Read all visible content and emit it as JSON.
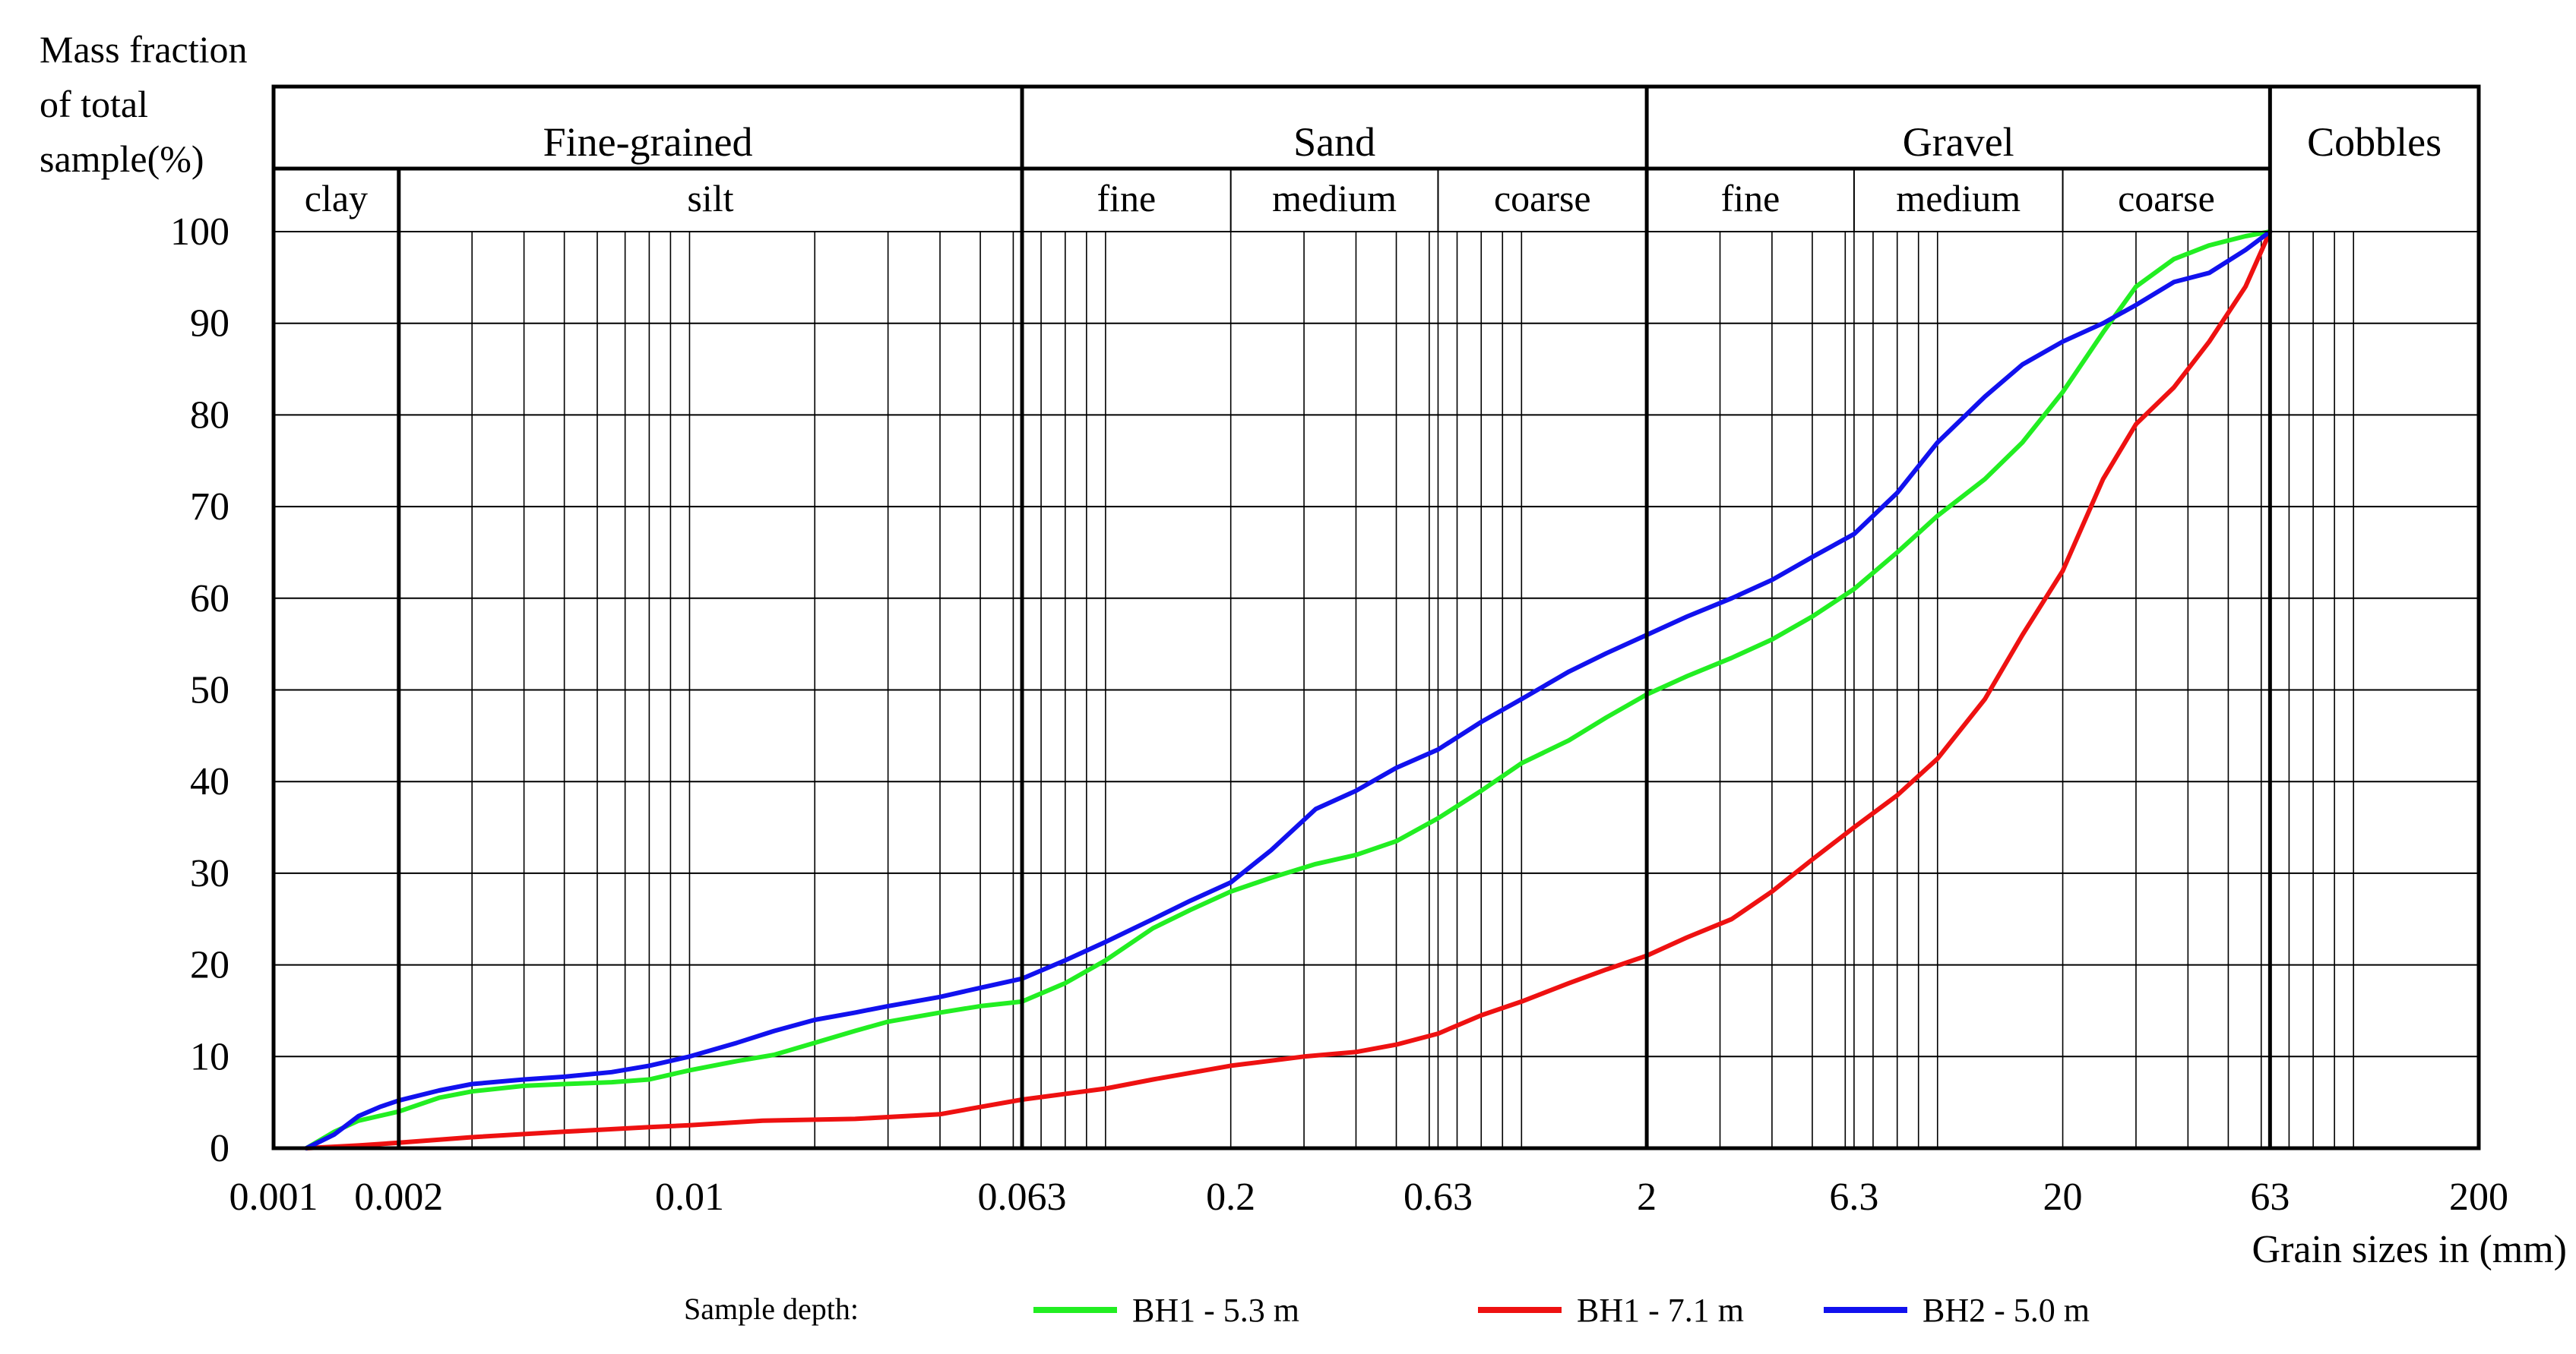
{
  "chart_data": {
    "type": "line",
    "ylabel_lines": [
      "Mass fraction",
      "of total",
      "sample(%)"
    ],
    "xlabel": "Grain sizes in (mm)",
    "xscale": "log",
    "xlim": [
      0.001,
      200
    ],
    "ylim": [
      0,
      100
    ],
    "x_ticks": [
      {
        "value": 0.001,
        "label": "0.001"
      },
      {
        "value": 0.002,
        "label": "0.002"
      },
      {
        "value": 0.01,
        "label": "0.01"
      },
      {
        "value": 0.063,
        "label": "0.063"
      },
      {
        "value": 0.2,
        "label": "0.2"
      },
      {
        "value": 0.63,
        "label": "0.63"
      },
      {
        "value": 2,
        "label": "2"
      },
      {
        "value": 6.3,
        "label": "6.3"
      },
      {
        "value": 20,
        "label": "20"
      },
      {
        "value": 63,
        "label": "63"
      },
      {
        "value": 200,
        "label": "200"
      }
    ],
    "y_ticks": [
      0,
      10,
      20,
      30,
      40,
      50,
      60,
      70,
      80,
      90,
      100
    ],
    "grid": true,
    "classification": {
      "main": [
        {
          "label": "Fine-grained",
          "from": 0.001,
          "to": 0.063
        },
        {
          "label": "Sand",
          "from": 0.063,
          "to": 2
        },
        {
          "label": "Gravel",
          "from": 2,
          "to": 63
        },
        {
          "label": "Cobbles",
          "from": 63,
          "to": 200
        }
      ],
      "sub": [
        {
          "label": "clay",
          "from": 0.001,
          "to": 0.002
        },
        {
          "label": "silt",
          "from": 0.002,
          "to": 0.063
        },
        {
          "label": "fine",
          "from": 0.063,
          "to": 0.2
        },
        {
          "label": "medium",
          "from": 0.2,
          "to": 0.63
        },
        {
          "label": "coarse",
          "from": 0.63,
          "to": 2
        },
        {
          "label": "fine",
          "from": 2,
          "to": 6.3
        },
        {
          "label": "medium",
          "from": 6.3,
          "to": 20
        },
        {
          "label": "coarse",
          "from": 20,
          "to": 63
        }
      ]
    },
    "legend_title": "Sample depth:",
    "legend_position": "bottom",
    "series": [
      {
        "name": "BH1 - 5.3 m",
        "color": "#22ee22",
        "points": [
          [
            0.0012,
            0
          ],
          [
            0.0014,
            1.8
          ],
          [
            0.0016,
            3
          ],
          [
            0.002,
            4
          ],
          [
            0.0025,
            5.5
          ],
          [
            0.003,
            6.2
          ],
          [
            0.004,
            6.8
          ],
          [
            0.005,
            7
          ],
          [
            0.0065,
            7.2
          ],
          [
            0.008,
            7.5
          ],
          [
            0.01,
            8.5
          ],
          [
            0.013,
            9.5
          ],
          [
            0.016,
            10.2
          ],
          [
            0.02,
            11.5
          ],
          [
            0.025,
            12.8
          ],
          [
            0.03,
            13.8
          ],
          [
            0.04,
            14.8
          ],
          [
            0.05,
            15.5
          ],
          [
            0.063,
            16
          ],
          [
            0.08,
            18
          ],
          [
            0.1,
            20.5
          ],
          [
            0.13,
            24
          ],
          [
            0.16,
            26
          ],
          [
            0.2,
            28
          ],
          [
            0.25,
            29.5
          ],
          [
            0.32,
            31
          ],
          [
            0.4,
            32
          ],
          [
            0.5,
            33.5
          ],
          [
            0.63,
            36
          ],
          [
            0.8,
            39
          ],
          [
            1,
            42
          ],
          [
            1.3,
            44.5
          ],
          [
            1.6,
            47
          ],
          [
            2,
            49.5
          ],
          [
            2.5,
            51.5
          ],
          [
            3.2,
            53.5
          ],
          [
            4,
            55.5
          ],
          [
            5,
            58
          ],
          [
            6.3,
            61
          ],
          [
            8,
            65
          ],
          [
            10,
            69
          ],
          [
            13,
            73
          ],
          [
            16,
            77
          ],
          [
            20,
            82.5
          ],
          [
            25,
            89
          ],
          [
            30,
            94
          ],
          [
            37,
            97
          ],
          [
            45,
            98.5
          ],
          [
            55,
            99.5
          ],
          [
            63,
            100
          ]
        ]
      },
      {
        "name": "BH1 - 7.1 m",
        "color": "#ee1111",
        "points": [
          [
            0.0012,
            0
          ],
          [
            0.0016,
            0.3
          ],
          [
            0.002,
            0.6
          ],
          [
            0.003,
            1.2
          ],
          [
            0.005,
            1.8
          ],
          [
            0.008,
            2.3
          ],
          [
            0.01,
            2.5
          ],
          [
            0.015,
            3
          ],
          [
            0.025,
            3.2
          ],
          [
            0.04,
            3.7
          ],
          [
            0.05,
            4.5
          ],
          [
            0.063,
            5.3
          ],
          [
            0.1,
            6.5
          ],
          [
            0.13,
            7.5
          ],
          [
            0.2,
            9
          ],
          [
            0.3,
            10
          ],
          [
            0.4,
            10.5
          ],
          [
            0.5,
            11.3
          ],
          [
            0.63,
            12.5
          ],
          [
            0.8,
            14.5
          ],
          [
            1,
            16
          ],
          [
            1.3,
            18
          ],
          [
            1.6,
            19.5
          ],
          [
            2,
            21
          ],
          [
            2.5,
            23
          ],
          [
            3.2,
            25
          ],
          [
            4,
            28
          ],
          [
            5,
            31.5
          ],
          [
            6.3,
            35
          ],
          [
            8,
            38.5
          ],
          [
            10,
            42.5
          ],
          [
            13,
            49
          ],
          [
            16,
            56
          ],
          [
            20,
            63
          ],
          [
            25,
            73
          ],
          [
            30,
            79
          ],
          [
            37,
            83
          ],
          [
            45,
            88
          ],
          [
            55,
            94
          ],
          [
            63,
            100
          ]
        ]
      },
      {
        "name": "BH2 - 5.0 m",
        "color": "#1111ee",
        "points": [
          [
            0.0012,
            0
          ],
          [
            0.0014,
            1.5
          ],
          [
            0.0016,
            3.5
          ],
          [
            0.0018,
            4.5
          ],
          [
            0.002,
            5.2
          ],
          [
            0.0025,
            6.3
          ],
          [
            0.003,
            7
          ],
          [
            0.004,
            7.5
          ],
          [
            0.005,
            7.8
          ],
          [
            0.0065,
            8.3
          ],
          [
            0.008,
            9
          ],
          [
            0.01,
            10
          ],
          [
            0.013,
            11.5
          ],
          [
            0.016,
            12.8
          ],
          [
            0.02,
            14
          ],
          [
            0.025,
            14.8
          ],
          [
            0.03,
            15.5
          ],
          [
            0.04,
            16.5
          ],
          [
            0.05,
            17.5
          ],
          [
            0.063,
            18.5
          ],
          [
            0.08,
            20.5
          ],
          [
            0.1,
            22.5
          ],
          [
            0.13,
            25
          ],
          [
            0.16,
            27
          ],
          [
            0.2,
            29
          ],
          [
            0.25,
            32.5
          ],
          [
            0.32,
            37
          ],
          [
            0.4,
            39
          ],
          [
            0.5,
            41.5
          ],
          [
            0.63,
            43.5
          ],
          [
            0.8,
            46.5
          ],
          [
            1,
            49
          ],
          [
            1.3,
            52
          ],
          [
            1.6,
            54
          ],
          [
            2,
            56
          ],
          [
            2.5,
            58
          ],
          [
            3.2,
            60
          ],
          [
            4,
            62
          ],
          [
            5,
            64.5
          ],
          [
            6.3,
            67
          ],
          [
            8,
            71.5
          ],
          [
            10,
            77
          ],
          [
            13,
            82
          ],
          [
            16,
            85.5
          ],
          [
            20,
            88
          ],
          [
            25,
            90
          ],
          [
            30,
            92
          ],
          [
            37,
            94.5
          ],
          [
            45,
            95.5
          ],
          [
            55,
            98
          ],
          [
            63,
            100
          ]
        ]
      }
    ]
  }
}
